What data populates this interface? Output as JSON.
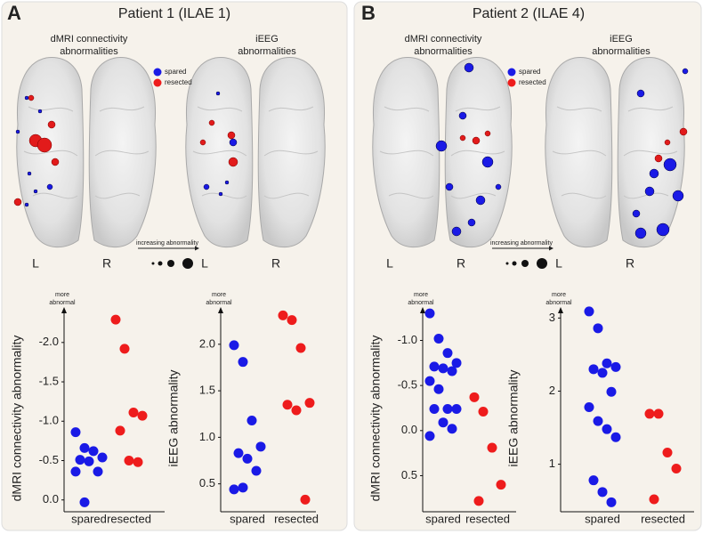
{
  "figure": {
    "panels": [
      {
        "letter": "A",
        "title": "Patient 1 (ILAE 1)",
        "brain_titles": [
          [
            "dMRI connectivity",
            "abnormalities"
          ],
          [
            "iEEG",
            "abnormalities"
          ]
        ],
        "legend": [
          "spared",
          "resected"
        ],
        "size_legend": "increasing abnormality",
        "sides": [
          "L",
          "R",
          "L",
          "R"
        ]
      },
      {
        "letter": "B",
        "title": "Patient 2 (ILAE 4)",
        "brain_titles": [
          [
            "dMRI connectivity",
            "abnormalities"
          ],
          [
            "iEEG",
            "abnormalities"
          ]
        ],
        "legend": [
          "spared",
          "resected"
        ],
        "size_legend": "increasing abnormality",
        "sides": [
          "L",
          "R",
          "L",
          "R"
        ]
      }
    ]
  },
  "chart_data": [
    {
      "type": "scatter",
      "ylabel": "dMRI connectivity abnormality",
      "annotation": [
        "more",
        "abnormal"
      ],
      "categories": [
        "spared",
        "resected"
      ],
      "colors": [
        "#1a1ae6",
        "#ee1c1c"
      ],
      "values": [
        [
          -0.86,
          -0.66,
          -0.62,
          -0.54,
          -0.51,
          -0.49,
          -0.36,
          -0.36,
          0.03
        ],
        [
          -2.29,
          -1.92,
          -1.11,
          -1.07,
          -0.88,
          -0.5,
          -0.48
        ]
      ],
      "ylim": [
        0.15,
        -2.45
      ],
      "yticks": [
        {
          "value": 0,
          "label": "0.0"
        },
        {
          "value": -0.5,
          "label": "-0.5"
        },
        {
          "value": -1,
          "label": "-1.0"
        },
        {
          "value": -1.5,
          "label": "-1.5"
        },
        {
          "value": -2,
          "label": "-2.0"
        }
      ]
    },
    {
      "type": "scatter",
      "ylabel": "iEEG abnormality",
      "annotation": [
        "more",
        "abnormal"
      ],
      "categories": [
        "spared",
        "resected"
      ],
      "colors": [
        "#1a1ae6",
        "#ee1c1c"
      ],
      "values": [
        [
          1.99,
          1.81,
          1.18,
          0.9,
          0.83,
          0.77,
          0.64,
          0.44,
          0.46
        ],
        [
          2.31,
          2.26,
          1.96,
          1.37,
          1.35,
          1.29,
          0.33
        ]
      ],
      "ylim": [
        0.2,
        2.4
      ],
      "yticks": [
        0.5,
        {
          "value": 1,
          "label": "1.0"
        },
        1.5,
        {
          "value": 2,
          "label": "2.0"
        }
      ]
    },
    {
      "type": "scatter",
      "ylabel": "dMRI connectivity abnormality",
      "annotation": [
        "more",
        "abnormal"
      ],
      "categories": [
        "spared",
        "resected"
      ],
      "colors": [
        "#1a1ae6",
        "#ee1c1c"
      ],
      "values": [
        [
          -1.3,
          -1.02,
          -0.86,
          -0.75,
          -0.71,
          -0.69,
          -0.66,
          -0.55,
          -0.46,
          -0.24,
          -0.24,
          -0.24,
          -0.09,
          -0.02,
          0.06
        ],
        [
          -0.37,
          -0.21,
          0.19,
          0.6,
          0.78
        ]
      ],
      "ylim": [
        0.9,
        -1.37
      ],
      "yticks": [
        {
          "value": 0.5,
          "label": "0.5"
        },
        {
          "value": 0,
          "label": "0.0"
        },
        -0.5,
        {
          "value": -1,
          "label": "-1.0"
        }
      ]
    },
    {
      "type": "scatter",
      "ylabel": "iEEG abnormality",
      "annotation": [
        "more",
        "abnormal"
      ],
      "categories": [
        "spared",
        "resected"
      ],
      "colors": [
        "#1a1ae6",
        "#ee1c1c"
      ],
      "values": [
        [
          3.09,
          2.86,
          2.38,
          2.33,
          2.3,
          2.25,
          1.99,
          1.78,
          1.59,
          1.48,
          1.37,
          0.78,
          0.62,
          0.48
        ],
        [
          1.69,
          1.69,
          1.16,
          0.94,
          0.52
        ]
      ],
      "ylim": [
        0.35,
        3.15
      ],
      "yticks": [
        1,
        2,
        3
      ]
    }
  ]
}
